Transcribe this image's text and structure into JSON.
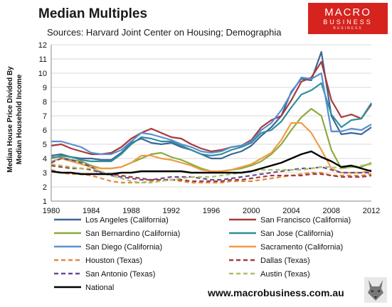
{
  "header": {
    "title": "Median Multiples",
    "subtitle": "Sources: Harvard Joint Center on Housing; Demographia",
    "logo_line1": "MACRO",
    "logo_line2": "BUSINESS",
    "logo_line3": "BUSINESS",
    "website": "www.macrobusiness.com.au"
  },
  "chart_data": {
    "type": "line",
    "title": "Median Multiples",
    "subtitle": "Sources: Harvard Joint Center on Housing; Demographia",
    "ylabel": "Median House Price Divided By Median Household Income",
    "ylabel_line1": "Median House Price Divided By",
    "ylabel_line2": "Median Household Income",
    "xlabel": "",
    "xlim": [
      1980,
      2012
    ],
    "ylim": [
      1,
      12
    ],
    "xticks": [
      1980,
      1984,
      1988,
      1992,
      1996,
      2000,
      2004,
      2008,
      2012
    ],
    "yticks": [
      1,
      2,
      3,
      4,
      5,
      6,
      7,
      8,
      9,
      10,
      11,
      12
    ],
    "grid": "horizontal",
    "legend_position": "bottom",
    "x": [
      1980,
      1981,
      1982,
      1983,
      1984,
      1985,
      1986,
      1987,
      1988,
      1989,
      1990,
      1991,
      1992,
      1993,
      1994,
      1995,
      1996,
      1997,
      1998,
      1999,
      2000,
      2001,
      2002,
      2003,
      2004,
      2005,
      2006,
      2007,
      2008,
      2009,
      2010,
      2011,
      2012
    ],
    "series": [
      {
        "name": "Los Angeles (California)",
        "color": "#3d6796",
        "dash": "solid",
        "values": [
          4.2,
          4.3,
          4.1,
          4.0,
          4.0,
          3.9,
          3.9,
          4.4,
          5.1,
          5.4,
          5.1,
          5.0,
          5.1,
          4.8,
          4.6,
          4.3,
          4.0,
          4.0,
          4.3,
          4.5,
          4.9,
          5.6,
          6.2,
          7.0,
          8.7,
          9.6,
          9.5,
          11.5,
          7.0,
          5.7,
          5.8,
          5.7,
          6.2
        ]
      },
      {
        "name": "San Francisco (California)",
        "color": "#a63a3a",
        "dash": "solid",
        "values": [
          4.9,
          5.0,
          4.7,
          4.5,
          4.3,
          4.3,
          4.4,
          4.8,
          5.4,
          5.8,
          6.1,
          5.8,
          5.5,
          5.4,
          5.0,
          4.7,
          4.5,
          4.6,
          4.8,
          4.9,
          5.3,
          6.2,
          6.7,
          7.0,
          8.1,
          9.4,
          9.7,
          10.8,
          8.1,
          6.9,
          7.1,
          6.8,
          7.8
        ]
      },
      {
        "name": "San Bernardino (California)",
        "color": "#8aab3c",
        "dash": "solid",
        "values": [
          4.1,
          4.1,
          3.9,
          3.8,
          3.5,
          3.3,
          3.3,
          3.4,
          3.7,
          4.0,
          4.3,
          4.4,
          4.1,
          3.9,
          3.6,
          3.3,
          3.1,
          3.1,
          3.2,
          3.3,
          3.5,
          3.8,
          4.3,
          5.0,
          6.0,
          6.9,
          7.5,
          7.0,
          4.6,
          3.3,
          3.4,
          3.4,
          3.7
        ]
      },
      {
        "name": "San Jose (California)",
        "color": "#2f8f9b",
        "dash": "solid",
        "values": [
          4.0,
          4.2,
          4.1,
          3.9,
          3.8,
          3.8,
          3.8,
          4.3,
          5.0,
          5.5,
          5.4,
          5.2,
          5.2,
          4.9,
          4.6,
          4.3,
          4.2,
          4.3,
          4.6,
          4.8,
          5.1,
          5.8,
          6.0,
          6.6,
          7.6,
          8.5,
          8.8,
          9.3,
          7.1,
          6.2,
          6.7,
          6.8,
          7.9
        ]
      },
      {
        "name": "San Diego (California)",
        "color": "#5b8fd0",
        "dash": "solid",
        "values": [
          5.2,
          5.2,
          5.0,
          4.8,
          4.4,
          4.3,
          4.3,
          4.6,
          5.2,
          5.8,
          5.7,
          5.5,
          5.3,
          5.0,
          4.8,
          4.5,
          4.4,
          4.5,
          4.8,
          4.9,
          5.2,
          6.0,
          6.5,
          7.4,
          8.6,
          9.7,
          9.6,
          10.0,
          5.9,
          5.9,
          6.1,
          6.0,
          6.4
        ]
      },
      {
        "name": "Sacramento (California)",
        "color": "#f39a45",
        "dash": "solid",
        "values": [
          3.8,
          4.0,
          3.8,
          3.6,
          3.4,
          3.3,
          3.3,
          3.4,
          3.7,
          4.2,
          4.2,
          4.0,
          3.9,
          3.7,
          3.5,
          3.2,
          3.1,
          3.1,
          3.2,
          3.4,
          3.6,
          4.0,
          4.4,
          5.3,
          6.5,
          6.5,
          5.8,
          4.6,
          3.3,
          3.0,
          3.0,
          3.0,
          3.2
        ]
      },
      {
        "name": "Houston (Texas)",
        "color": "#e08a3a",
        "dash": "dashed",
        "values": [
          3.2,
          3.0,
          2.9,
          2.9,
          2.8,
          2.6,
          2.4,
          2.3,
          2.3,
          2.3,
          2.4,
          2.5,
          2.5,
          2.4,
          2.3,
          2.3,
          2.3,
          2.3,
          2.4,
          2.4,
          2.4,
          2.5,
          2.6,
          2.7,
          2.8,
          2.9,
          3.0,
          3.0,
          2.8,
          2.8,
          2.8,
          2.8,
          2.9
        ]
      },
      {
        "name": "Dallas (Texas)",
        "color": "#a33b3b",
        "dash": "dashed",
        "values": [
          3.5,
          3.4,
          3.3,
          3.3,
          3.2,
          3.0,
          2.9,
          2.8,
          2.7,
          2.6,
          2.5,
          2.5,
          2.5,
          2.5,
          2.4,
          2.4,
          2.4,
          2.4,
          2.5,
          2.5,
          2.6,
          2.7,
          2.8,
          2.8,
          2.8,
          2.8,
          2.9,
          2.9,
          2.8,
          2.7,
          2.7,
          2.7,
          2.8
        ]
      },
      {
        "name": "San Antonio (Texas)",
        "color": "#6a4c96",
        "dash": "dashed",
        "values": [
          3.7,
          4.0,
          3.9,
          3.7,
          3.4,
          3.0,
          2.8,
          2.7,
          2.6,
          2.5,
          2.5,
          2.6,
          2.7,
          2.7,
          2.7,
          2.6,
          2.5,
          2.5,
          2.6,
          2.7,
          2.8,
          2.9,
          3.0,
          3.1,
          3.2,
          3.3,
          3.3,
          3.4,
          3.2,
          3.0,
          3.0,
          3.0,
          3.0
        ]
      },
      {
        "name": "Austin (Texas)",
        "color": "#a8c46a",
        "dash": "dashed",
        "values": [
          3.6,
          3.5,
          3.4,
          3.3,
          3.3,
          3.1,
          2.8,
          2.6,
          2.4,
          2.3,
          2.3,
          2.4,
          2.5,
          2.6,
          2.7,
          2.7,
          2.7,
          2.8,
          2.9,
          3.0,
          3.1,
          3.2,
          3.2,
          3.2,
          3.2,
          3.2,
          3.3,
          3.4,
          3.4,
          3.3,
          3.4,
          3.5,
          3.6
        ]
      },
      {
        "name": "National",
        "color": "#000000",
        "dash": "solid",
        "values": [
          3.1,
          3.0,
          3.0,
          2.9,
          2.9,
          2.9,
          2.9,
          3.0,
          3.0,
          3.1,
          3.1,
          3.1,
          3.1,
          3.1,
          3.0,
          3.0,
          3.0,
          3.0,
          3.0,
          3.0,
          3.1,
          3.3,
          3.5,
          3.7,
          4.0,
          4.3,
          4.5,
          4.1,
          3.8,
          3.4,
          3.5,
          3.3,
          3.1
        ]
      }
    ]
  }
}
